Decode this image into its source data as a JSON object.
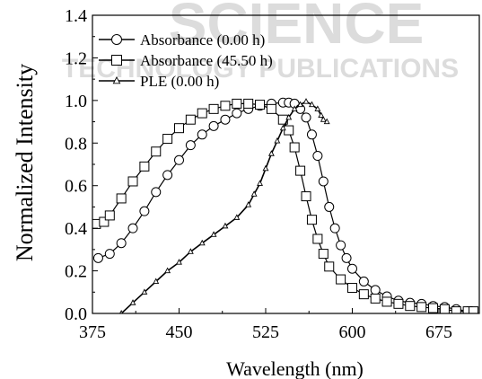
{
  "watermark": {
    "top": "SCIENCE",
    "middle": "TECHNOLOGY PUBLICATIONS",
    "color": "#d9d9d9"
  },
  "chart_data": {
    "type": "line",
    "title": "",
    "xlabel": "Wavelength (nm)",
    "ylabel": "Normalized Intensity",
    "xlim": [
      375,
      710
    ],
    "ylim": [
      0.0,
      1.4
    ],
    "xticks": [
      375,
      450,
      525,
      600,
      675
    ],
    "yticks": [
      0.0,
      0.2,
      0.4,
      0.6,
      0.8,
      1.0,
      1.2,
      1.4
    ],
    "xtick_labels": [
      "375",
      "450",
      "525",
      "600",
      "675"
    ],
    "ytick_labels": [
      "0.0",
      "0.2",
      "0.4",
      "0.6",
      "0.8",
      "1.0",
      "1.2",
      "1.4"
    ],
    "grid": false,
    "legend_position": "top-left",
    "series": [
      {
        "name": "Absorbance (0.00 h)",
        "marker": "circle",
        "color": "#000000",
        "x": [
          380,
          390,
          400,
          410,
          420,
          430,
          440,
          450,
          460,
          470,
          480,
          490,
          500,
          510,
          520,
          530,
          540,
          545,
          550,
          555,
          560,
          565,
          570,
          575,
          580,
          585,
          590,
          595,
          600,
          610,
          620,
          630,
          640,
          650,
          660,
          670,
          680,
          690,
          700
        ],
        "y": [
          0.26,
          0.28,
          0.33,
          0.4,
          0.48,
          0.57,
          0.65,
          0.72,
          0.79,
          0.84,
          0.88,
          0.91,
          0.94,
          0.96,
          0.975,
          0.985,
          0.99,
          0.99,
          0.985,
          0.96,
          0.92,
          0.84,
          0.74,
          0.62,
          0.5,
          0.4,
          0.32,
          0.26,
          0.21,
          0.15,
          0.11,
          0.08,
          0.06,
          0.05,
          0.045,
          0.035,
          0.03,
          0.02,
          0.01
        ]
      },
      {
        "name": "Absorbance (45.50 h)",
        "marker": "square",
        "color": "#000000",
        "x": [
          378,
          385,
          390,
          400,
          410,
          420,
          430,
          440,
          450,
          460,
          470,
          480,
          490,
          500,
          510,
          520,
          530,
          540,
          545,
          550,
          555,
          560,
          565,
          570,
          575,
          580,
          590,
          600,
          610,
          620,
          630,
          640,
          650,
          660,
          670,
          680,
          690,
          700,
          705
        ],
        "y": [
          0.42,
          0.43,
          0.46,
          0.54,
          0.62,
          0.69,
          0.76,
          0.82,
          0.87,
          0.91,
          0.94,
          0.96,
          0.975,
          0.985,
          0.985,
          0.98,
          0.96,
          0.91,
          0.86,
          0.78,
          0.67,
          0.55,
          0.44,
          0.35,
          0.28,
          0.22,
          0.16,
          0.12,
          0.09,
          0.07,
          0.055,
          0.045,
          0.035,
          0.03,
          0.025,
          0.02,
          0.01,
          0.01,
          0.01
        ]
      },
      {
        "name": "PLE (0.00 h)",
        "marker": "triangle",
        "color": "#000000",
        "x": [
          400,
          410,
          420,
          430,
          440,
          450,
          460,
          470,
          480,
          490,
          500,
          510,
          515,
          520,
          525,
          530,
          535,
          540,
          545,
          550,
          555,
          560,
          565,
          570,
          573,
          575,
          578
        ],
        "y": [
          0.0,
          0.05,
          0.1,
          0.15,
          0.2,
          0.24,
          0.29,
          0.33,
          0.37,
          0.41,
          0.45,
          0.51,
          0.56,
          0.61,
          0.68,
          0.75,
          0.81,
          0.87,
          0.92,
          0.96,
          0.98,
          0.995,
          0.98,
          0.96,
          0.93,
          0.91,
          0.9
        ]
      }
    ]
  }
}
